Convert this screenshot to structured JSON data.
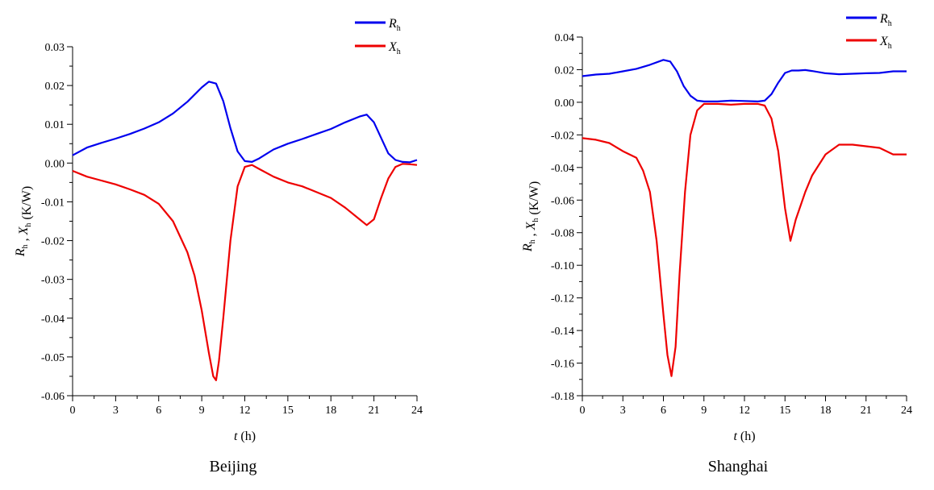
{
  "charts": {
    "beijing": {
      "caption": "Beijing"
    },
    "shanghai": {
      "caption": "Shanghai"
    }
  },
  "chart_data": [
    {
      "type": "line",
      "caption": "Beijing",
      "xlabel": "t (h)",
      "ylabel": "R_h , X_h (K/W)",
      "xlim": [
        0,
        24
      ],
      "ylim": [
        -0.06,
        0.03
      ],
      "xticks": [
        "0",
        "3",
        "6",
        "9",
        "12",
        "15",
        "18",
        "21",
        "24"
      ],
      "yticks": [
        "-0.06",
        "-0.05",
        "-0.04",
        "-0.03",
        "-0.02",
        "-0.01",
        "0.00",
        "0.01",
        "0.02",
        "0.03"
      ],
      "legend": "top-right",
      "grid": false,
      "series": [
        {
          "name": "R_h",
          "color": "#0000ee",
          "x": [
            0,
            1,
            2,
            3,
            4,
            5,
            6,
            7,
            8,
            9,
            9.5,
            10,
            10.5,
            11,
            11.5,
            12,
            12.5,
            13,
            14,
            15,
            16,
            17,
            18,
            19,
            20,
            20.5,
            21,
            21.5,
            22,
            22.5,
            23,
            23.5,
            24
          ],
          "y": [
            0.002,
            0.004,
            0.0052,
            0.0063,
            0.0075,
            0.0089,
            0.0105,
            0.0128,
            0.0158,
            0.0195,
            0.021,
            0.0205,
            0.016,
            0.009,
            0.003,
            0.0005,
            0.0003,
            0.0012,
            0.0035,
            0.005,
            0.0062,
            0.0075,
            0.0088,
            0.0105,
            0.012,
            0.0125,
            0.0105,
            0.0065,
            0.0025,
            0.0008,
            0.0003,
            0.0002,
            0.0008
          ]
        },
        {
          "name": "X_h",
          "color": "#ee0000",
          "x": [
            0,
            1,
            2,
            3,
            4,
            5,
            6,
            7,
            8,
            8.5,
            9,
            9.5,
            9.8,
            10,
            10.2,
            10.5,
            11,
            11.5,
            12,
            12.5,
            13,
            14,
            15,
            16,
            17,
            18,
            19,
            20,
            20.5,
            21,
            21.5,
            22,
            22.5,
            23,
            23.5,
            24
          ],
          "y": [
            -0.002,
            -0.0035,
            -0.0045,
            -0.0055,
            -0.0068,
            -0.0082,
            -0.0105,
            -0.015,
            -0.023,
            -0.029,
            -0.038,
            -0.049,
            -0.055,
            -0.056,
            -0.051,
            -0.04,
            -0.02,
            -0.006,
            -0.001,
            -0.0005,
            -0.0015,
            -0.0035,
            -0.005,
            -0.006,
            -0.0075,
            -0.009,
            -0.0115,
            -0.0145,
            -0.016,
            -0.0145,
            -0.009,
            -0.004,
            -0.001,
            -0.0002,
            -0.0003,
            -0.0005
          ]
        }
      ]
    },
    {
      "type": "line",
      "caption": "Shanghai",
      "xlabel": "t (h)",
      "ylabel": "R_h , X_h (K/W)",
      "xlim": [
        0,
        24
      ],
      "ylim": [
        -0.18,
        0.04
      ],
      "xticks": [
        "0",
        "3",
        "6",
        "9",
        "12",
        "15",
        "18",
        "21",
        "24"
      ],
      "yticks": [
        "-0.18",
        "-0.16",
        "-0.14",
        "-0.12",
        "-0.10",
        "-0.08",
        "-0.06",
        "-0.04",
        "-0.02",
        "0.00",
        "0.02",
        "0.04"
      ],
      "legend": "top-right",
      "grid": false,
      "series": [
        {
          "name": "R_h",
          "color": "#0000ee",
          "x": [
            0,
            1,
            2,
            3,
            4,
            5,
            6,
            6.5,
            7,
            7.5,
            8,
            8.5,
            9,
            10,
            11,
            12,
            13,
            13.5,
            14,
            14.5,
            15,
            15.5,
            16,
            16.5,
            17,
            18,
            19,
            20,
            21,
            22,
            23,
            24
          ],
          "y": [
            0.016,
            0.017,
            0.0175,
            0.019,
            0.0205,
            0.023,
            0.026,
            0.025,
            0.019,
            0.01,
            0.004,
            0.001,
            0.0005,
            0.0005,
            0.001,
            0.0008,
            0.0005,
            0.001,
            0.005,
            0.012,
            0.018,
            0.0195,
            0.0195,
            0.0198,
            0.0192,
            0.0178,
            0.0172,
            0.0175,
            0.0178,
            0.018,
            0.019,
            0.019
          ]
        },
        {
          "name": "X_h",
          "color": "#ee0000",
          "x": [
            0,
            1,
            2,
            3,
            4,
            4.5,
            5,
            5.5,
            6,
            6.3,
            6.6,
            6.9,
            7.2,
            7.6,
            8,
            8.5,
            9,
            10,
            11,
            12,
            13,
            13.5,
            14,
            14.5,
            15,
            15.4,
            15.8,
            16.5,
            17,
            18,
            19,
            20,
            21,
            22,
            23,
            24
          ],
          "y": [
            -0.022,
            -0.023,
            -0.025,
            -0.03,
            -0.034,
            -0.042,
            -0.055,
            -0.085,
            -0.13,
            -0.155,
            -0.168,
            -0.15,
            -0.105,
            -0.055,
            -0.02,
            -0.005,
            -0.001,
            -0.001,
            -0.0015,
            -0.001,
            -0.001,
            -0.002,
            -0.01,
            -0.03,
            -0.065,
            -0.085,
            -0.072,
            -0.055,
            -0.045,
            -0.032,
            -0.026,
            -0.026,
            -0.027,
            -0.028,
            -0.032,
            -0.032
          ]
        }
      ]
    }
  ]
}
